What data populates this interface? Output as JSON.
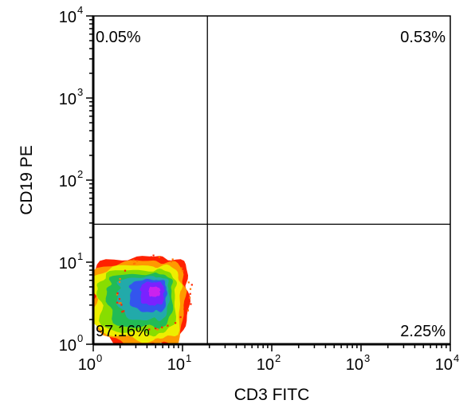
{
  "chart_data": {
    "type": "scatter",
    "subtype": "flow-cytometry-density-plot",
    "title": "",
    "xlabel": "CD3 FITC",
    "ylabel": "CD19 PE",
    "xscale": "log",
    "yscale": "log",
    "xlim": [
      1,
      10000
    ],
    "ylim": [
      1,
      10000
    ],
    "x_ticks": [
      {
        "value": 1,
        "base": "10",
        "exp": "0"
      },
      {
        "value": 10,
        "base": "10",
        "exp": "1"
      },
      {
        "value": 100,
        "base": "10",
        "exp": "2"
      },
      {
        "value": 1000,
        "base": "10",
        "exp": "3"
      },
      {
        "value": 10000,
        "base": "10",
        "exp": "4"
      }
    ],
    "y_ticks": [
      {
        "value": 1,
        "base": "10",
        "exp": "0"
      },
      {
        "value": 10,
        "base": "10",
        "exp": "1"
      },
      {
        "value": 100,
        "base": "10",
        "exp": "2"
      },
      {
        "value": 1000,
        "base": "10",
        "exp": "3"
      },
      {
        "value": 10000,
        "base": "10",
        "exp": "4"
      }
    ],
    "gates": {
      "x": 19,
      "y": 29
    },
    "quadrants": [
      {
        "position": "upper-left",
        "label": "0.05%"
      },
      {
        "position": "upper-right",
        "label": "0.53%"
      },
      {
        "position": "lower-left",
        "label": "97.16%"
      },
      {
        "position": "lower-right",
        "label": "2.25%"
      }
    ],
    "population": {
      "center": [
        4.7,
        4.4
      ],
      "levels": [
        {
          "color": "#ff2200",
          "x": [
            1.0,
            11.5
          ],
          "y": [
            1.0,
            11.5
          ]
        },
        {
          "color": "#ff9900",
          "x": [
            1.0,
            10.5
          ],
          "y": [
            1.0,
            10.2
          ]
        },
        {
          "color": "#eeee00",
          "x": [
            1.0,
            9.5
          ],
          "y": [
            1.15,
            9.0
          ]
        },
        {
          "color": "#88dd00",
          "x": [
            1.15,
            8.3
          ],
          "y": [
            1.35,
            8.0
          ]
        },
        {
          "color": "#22bb55",
          "x": [
            1.45,
            7.6
          ],
          "y": [
            1.6,
            7.2
          ]
        },
        {
          "color": "#22aaaa",
          "x": [
            1.9,
            7.0
          ],
          "y": [
            2.0,
            6.6
          ]
        },
        {
          "color": "#3355ee",
          "x": [
            2.6,
            6.6
          ],
          "y": [
            2.5,
            6.1
          ]
        },
        {
          "color": "#7a22ff",
          "x": [
            3.4,
            6.2
          ],
          "y": [
            3.0,
            5.7
          ]
        },
        {
          "color": "#cc22ee",
          "x": [
            4.2,
            5.6
          ],
          "y": [
            3.8,
            5.0
          ]
        }
      ]
    },
    "grid": false,
    "legend": "none"
  }
}
